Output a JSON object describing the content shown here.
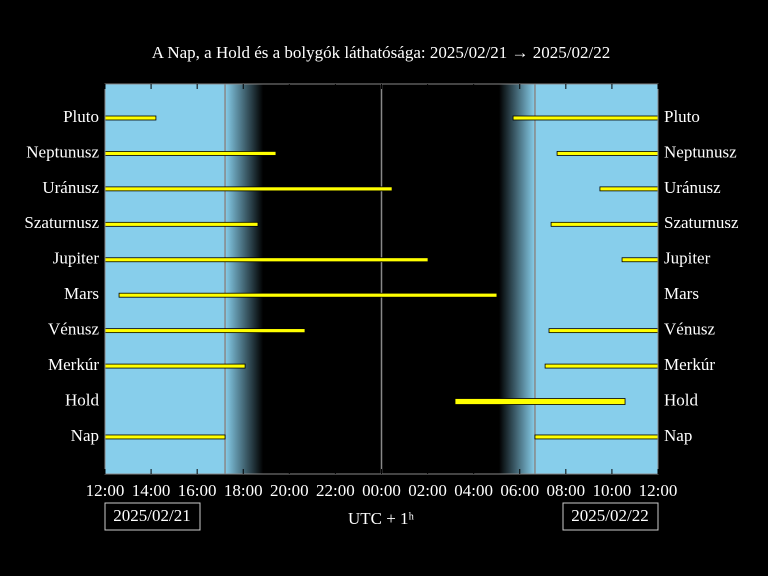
{
  "chart_data": {
    "type": "timeline",
    "title": "A Nap, a Hold és a bolygók láthatósága: 2025/02/21 → 2025/02/22",
    "x_label": "UTC + 1ʰ",
    "start_date": "2025/02/21",
    "end_date": "2025/02/22",
    "xlim": [
      0,
      24
    ],
    "xticks": [
      {
        "value": 0,
        "label": "12:00"
      },
      {
        "value": 2,
        "label": "14:00"
      },
      {
        "value": 4,
        "label": "16:00"
      },
      {
        "value": 6,
        "label": "18:00"
      },
      {
        "value": 8,
        "label": "20:00"
      },
      {
        "value": 10,
        "label": "22:00"
      },
      {
        "value": 12,
        "label": "00:00"
      },
      {
        "value": 14,
        "label": "02:00"
      },
      {
        "value": 16,
        "label": "04:00"
      },
      {
        "value": 18,
        "label": "06:00"
      },
      {
        "value": 20,
        "label": "08:00"
      },
      {
        "value": 22,
        "label": "10:00"
      },
      {
        "value": 24,
        "label": "12:00"
      }
    ],
    "sunset": 5.21,
    "dusk_end": 6.86,
    "dawn_start": 17.1,
    "sunrise": 18.66,
    "midnight": 12,
    "day_color": "#87ceeb",
    "bar_color": "#ffff00",
    "series": [
      {
        "name": "Pluto",
        "intervals": [
          [
            0,
            2.21
          ],
          [
            17.71,
            24
          ]
        ]
      },
      {
        "name": "Neptunusz",
        "intervals": [
          [
            0,
            7.42
          ],
          [
            19.62,
            24
          ]
        ]
      },
      {
        "name": "Uránusz",
        "intervals": [
          [
            0,
            12.46
          ],
          [
            21.48,
            24
          ]
        ]
      },
      {
        "name": "Szaturnusz",
        "intervals": [
          [
            0,
            6.64
          ],
          [
            19.36,
            24
          ]
        ]
      },
      {
        "name": "Jupiter",
        "intervals": [
          [
            0,
            14.02
          ],
          [
            22.44,
            24
          ]
        ]
      },
      {
        "name": "Mars",
        "intervals": [
          [
            0.61,
            17.01
          ]
        ]
      },
      {
        "name": "Vénusz",
        "intervals": [
          [
            0,
            8.68
          ],
          [
            19.27,
            24
          ]
        ]
      },
      {
        "name": "Merkúr",
        "intervals": [
          [
            0,
            6.08
          ],
          [
            19.1,
            24
          ]
        ]
      },
      {
        "name": "Hold",
        "intervals": [
          [
            15.19,
            22.57
          ]
        ]
      },
      {
        "name": "Nap",
        "intervals": [
          [
            0,
            5.21
          ],
          [
            18.66,
            24
          ]
        ]
      }
    ]
  }
}
